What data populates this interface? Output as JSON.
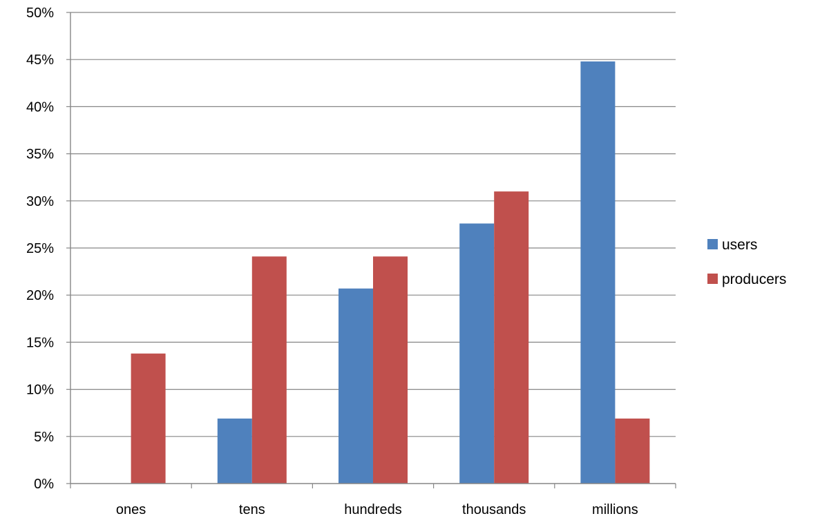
{
  "chart_data": {
    "type": "bar",
    "categories": [
      "ones",
      "tens",
      "hundreds",
      "thousands",
      "millions"
    ],
    "series": [
      {
        "name": "users",
        "color": "#4f81bd",
        "values": [
          0,
          6.9,
          20.7,
          27.6,
          44.8
        ]
      },
      {
        "name": "producers",
        "color": "#c0504d",
        "values": [
          13.8,
          24.1,
          24.1,
          31.0,
          6.9
        ]
      }
    ],
    "yticks": [
      "0%",
      "5%",
      "10%",
      "15%",
      "20%",
      "25%",
      "30%",
      "35%",
      "40%",
      "45%",
      "50%"
    ],
    "ylim": [
      0,
      50
    ],
    "grid": true,
    "legend_position": "right",
    "title": "",
    "xlabel": "",
    "ylabel": ""
  }
}
